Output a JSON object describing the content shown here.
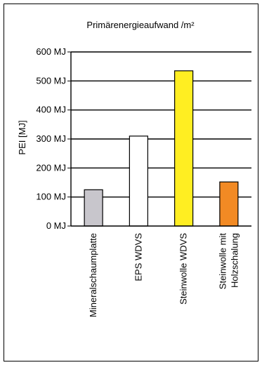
{
  "chart_data": {
    "type": "bar",
    "title": "Primärenergieaufwand /m²",
    "ylabel": "PEI [MJ]",
    "xlabel": "",
    "ylim": [
      0,
      600
    ],
    "yticks": [
      {
        "value": 0,
        "label": "0 MJ"
      },
      {
        "value": 100,
        "label": "100 MJ"
      },
      {
        "value": 200,
        "label": "200 MJ"
      },
      {
        "value": 300,
        "label": "300 MJ"
      },
      {
        "value": 400,
        "label": "400 MJ"
      },
      {
        "value": 500,
        "label": "500 MJ"
      },
      {
        "value": 600,
        "label": "600 MJ"
      }
    ],
    "grid": true,
    "categories": [
      {
        "lines": [
          "Mineralschaumplatte"
        ],
        "value": 125,
        "color": "#c8c6cc"
      },
      {
        "lines": [
          "EPS WDVS"
        ],
        "value": 310,
        "color": "#ffffff"
      },
      {
        "lines": [
          "Steinwolle WDVS"
        ],
        "value": 535,
        "color": "#ffee22"
      },
      {
        "lines": [
          "Steinwolle mit",
          "Holzschalung"
        ],
        "value": 152,
        "color": "#f28a24"
      }
    ]
  }
}
